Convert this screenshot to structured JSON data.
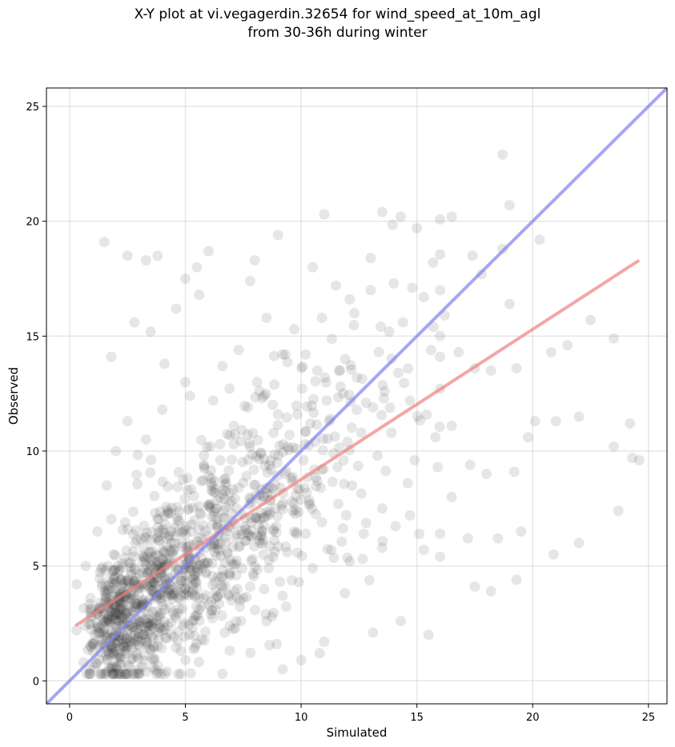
{
  "chart_data": {
    "type": "scatter",
    "title": [
      "X-Y plot at vi.vegagerdin.32654 for wind_speed_at_10m_agl",
      "from 30-36h during winter"
    ],
    "xlabel": "Simulated",
    "ylabel": "Observed",
    "xlim": [
      -1.0,
      25.8
    ],
    "ylim": [
      -1.0,
      25.8
    ],
    "xticks": [
      0,
      5,
      10,
      15,
      20,
      25
    ],
    "yticks": [
      0,
      5,
      10,
      15,
      20,
      25
    ],
    "grid": true,
    "point_color": "#333333",
    "point_opacity": 0.12,
    "regression_line": {
      "color": "#f08080",
      "x": [
        0.25,
        24.6
      ],
      "y": [
        2.4,
        18.3
      ]
    },
    "identity_line": {
      "color": "#8080f0",
      "x": [
        -1.0,
        25.8
      ],
      "y": [
        -1.0,
        25.8
      ]
    },
    "sample_points": [
      [
        1.5,
        19.1
      ],
      [
        2.5,
        18.5
      ],
      [
        3.3,
        18.3
      ],
      [
        3.8,
        18.5
      ],
      [
        1.8,
        14.1
      ],
      [
        2.8,
        15.6
      ],
      [
        3.5,
        15.2
      ],
      [
        4.6,
        16.2
      ],
      [
        5.0,
        17.5
      ],
      [
        5.5,
        18.0
      ],
      [
        6.0,
        18.7
      ],
      [
        5.6,
        16.8
      ],
      [
        7.8,
        17.4
      ],
      [
        8.0,
        18.3
      ],
      [
        9.0,
        19.4
      ],
      [
        10.5,
        18.0
      ],
      [
        11.0,
        20.3
      ],
      [
        13.0,
        18.4
      ],
      [
        13.5,
        20.4
      ],
      [
        14.3,
        20.2
      ],
      [
        15.0,
        19.7
      ],
      [
        16.5,
        20.2
      ],
      [
        18.7,
        22.9
      ],
      [
        19.0,
        20.7
      ],
      [
        20.3,
        19.2
      ],
      [
        17.8,
        17.7
      ],
      [
        19.0,
        16.4
      ],
      [
        20.8,
        14.3
      ],
      [
        21.5,
        14.6
      ],
      [
        22.5,
        15.7
      ],
      [
        23.5,
        14.9
      ],
      [
        21.0,
        11.3
      ],
      [
        22.0,
        11.5
      ],
      [
        23.5,
        10.2
      ],
      [
        24.2,
        11.2
      ],
      [
        24.3,
        9.7
      ],
      [
        24.6,
        9.6
      ],
      [
        23.7,
        7.4
      ],
      [
        22.0,
        6.0
      ],
      [
        20.9,
        5.5
      ],
      [
        19.5,
        6.5
      ],
      [
        19.3,
        4.4
      ],
      [
        18.5,
        6.2
      ],
      [
        17.5,
        4.1
      ],
      [
        18.2,
        3.9
      ],
      [
        15.3,
        5.7
      ],
      [
        15.5,
        2.0
      ],
      [
        14.3,
        2.6
      ],
      [
        13.1,
        2.1
      ],
      [
        11.0,
        1.7
      ],
      [
        10.0,
        0.9
      ],
      [
        9.2,
        0.5
      ],
      [
        10.8,
        1.2
      ],
      [
        6.6,
        0.3
      ],
      [
        5.0,
        0.9
      ],
      [
        4.2,
        0.4
      ],
      [
        3.3,
        0.4
      ],
      [
        2.6,
        0.6
      ],
      [
        1.6,
        0.9
      ],
      [
        0.6,
        0.8
      ],
      [
        0.3,
        2.2
      ],
      [
        0.3,
        4.2
      ],
      [
        0.7,
        5.0
      ],
      [
        1.2,
        6.5
      ],
      [
        1.6,
        8.5
      ],
      [
        2.0,
        10.0
      ],
      [
        2.5,
        11.3
      ],
      [
        3.3,
        10.5
      ],
      [
        4.0,
        11.8
      ],
      [
        5.2,
        12.4
      ],
      [
        6.6,
        13.7
      ],
      [
        8.1,
        13.0
      ],
      [
        9.2,
        14.2
      ],
      [
        10.2,
        14.2
      ],
      [
        10.7,
        13.5
      ],
      [
        11.9,
        14.0
      ],
      [
        12.3,
        16.0
      ],
      [
        13.8,
        15.2
      ],
      [
        14.4,
        15.6
      ],
      [
        15.3,
        16.7
      ],
      [
        16.2,
        15.9
      ],
      [
        16.8,
        14.3
      ],
      [
        17.5,
        13.6
      ],
      [
        18.2,
        13.5
      ],
      [
        19.3,
        13.6
      ],
      [
        20.1,
        11.3
      ],
      [
        16.5,
        11.1
      ],
      [
        15.8,
        10.6
      ],
      [
        14.9,
        9.6
      ],
      [
        14.6,
        8.6
      ],
      [
        15.9,
        9.3
      ],
      [
        16.5,
        8.0
      ],
      [
        17.3,
        9.4
      ],
      [
        18.0,
        9.0
      ],
      [
        19.2,
        9.1
      ],
      [
        19.8,
        10.6
      ],
      [
        17.2,
        6.2
      ],
      [
        16.0,
        6.4
      ],
      [
        15.1,
        6.4
      ],
      [
        14.7,
        7.2
      ],
      [
        13.5,
        7.5
      ],
      [
        12.7,
        6.4
      ],
      [
        12.1,
        5.2
      ],
      [
        11.3,
        5.7
      ],
      [
        10.5,
        4.9
      ],
      [
        9.9,
        4.3
      ],
      [
        9.2,
        3.7
      ],
      [
        8.5,
        2.6
      ],
      [
        7.4,
        2.6
      ],
      [
        6.7,
        2.1
      ],
      [
        5.7,
        1.8
      ],
      [
        4.8,
        1.3
      ],
      [
        3.8,
        1.5
      ],
      [
        2.8,
        2.0
      ],
      [
        2.1,
        2.6
      ],
      [
        1.3,
        2.3
      ],
      [
        0.9,
        3.6
      ],
      [
        1.9,
        4.8
      ],
      [
        2.6,
        4.2
      ],
      [
        3.1,
        3.2
      ],
      [
        3.6,
        4.6
      ],
      [
        4.2,
        5.3
      ],
      [
        4.7,
        3.6
      ],
      [
        5.4,
        4.4
      ],
      [
        5.9,
        5.8
      ],
      [
        6.4,
        6.8
      ],
      [
        7.0,
        7.3
      ],
      [
        7.6,
        6.1
      ],
      [
        8.2,
        8.1
      ],
      [
        8.7,
        9.2
      ],
      [
        9.3,
        9.0
      ],
      [
        9.8,
        10.1
      ],
      [
        10.4,
        11.2
      ],
      [
        11.1,
        12.2
      ],
      [
        11.7,
        12.8
      ],
      [
        12.4,
        13.2
      ],
      [
        13.1,
        11.9
      ],
      [
        13.6,
        12.6
      ],
      [
        14.2,
        13.4
      ],
      [
        14.7,
        12.2
      ],
      [
        10.9,
        9.2
      ],
      [
        9.6,
        7.8
      ],
      [
        8.8,
        6.6
      ],
      [
        7.9,
        5.3
      ],
      [
        7.2,
        4.6
      ],
      [
        6.3,
        3.9
      ],
      [
        5.6,
        3.1
      ],
      [
        4.9,
        2.4
      ],
      [
        4.3,
        6.3
      ],
      [
        3.7,
        7.3
      ],
      [
        3.2,
        5.8
      ],
      [
        2.4,
        6.9
      ],
      [
        1.9,
        5.5
      ],
      [
        1.4,
        4.1
      ],
      [
        5.1,
        8.3
      ],
      [
        5.8,
        9.4
      ],
      [
        6.5,
        10.3
      ],
      [
        7.1,
        11.1
      ],
      [
        7.7,
        11.9
      ],
      [
        8.4,
        12.4
      ],
      [
        9.0,
        11.6
      ],
      [
        9.5,
        10.7
      ],
      [
        10.1,
        9.6
      ],
      [
        10.7,
        8.7
      ],
      [
        11.4,
        9.9
      ],
      [
        12.0,
        10.4
      ],
      [
        12.6,
        10.8
      ],
      [
        13.3,
        9.8
      ],
      [
        13.9,
        10.8
      ],
      [
        12.2,
        8.5
      ],
      [
        11.6,
        7.7
      ],
      [
        10.9,
        6.9
      ],
      [
        10.2,
        6.4
      ],
      [
        9.4,
        5.6
      ],
      [
        8.6,
        4.9
      ],
      [
        7.8,
        4.1
      ],
      [
        7.0,
        3.5
      ],
      [
        6.1,
        2.9
      ],
      [
        5.3,
        2.3
      ],
      [
        4.5,
        1.9
      ],
      [
        3.4,
        2.7
      ],
      [
        2.2,
        3.4
      ],
      [
        1.0,
        1.6
      ],
      [
        1.7,
        1.2
      ],
      [
        2.9,
        1.2
      ],
      [
        4.0,
        2.2
      ],
      [
        6.8,
        5.6
      ],
      [
        8.0,
        7.1
      ],
      [
        9.1,
        8.4
      ],
      [
        10.6,
        10.4
      ],
      [
        11.2,
        11.3
      ],
      [
        12.8,
        12.1
      ],
      [
        6.2,
        12.2
      ],
      [
        5.0,
        13.0
      ],
      [
        4.1,
        13.8
      ],
      [
        7.3,
        14.4
      ],
      [
        8.5,
        15.8
      ],
      [
        9.7,
        15.3
      ],
      [
        10.9,
        15.8
      ],
      [
        11.5,
        17.2
      ],
      [
        12.1,
        16.6
      ],
      [
        13.0,
        17.0
      ],
      [
        14.0,
        17.3
      ],
      [
        14.8,
        17.1
      ],
      [
        15.7,
        18.2
      ],
      [
        16.0,
        17.0
      ],
      [
        17.4,
        18.5
      ],
      [
        18.7,
        18.8
      ]
    ]
  }
}
